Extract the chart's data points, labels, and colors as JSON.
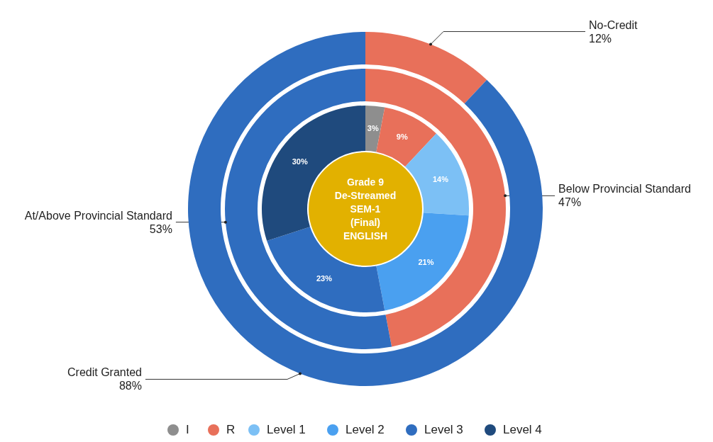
{
  "chart_data": [
    {
      "type": "donut",
      "title": "Grade 9 De-Streamed SEM-1 (Final) ENGLISH",
      "categories": [
        "I",
        "R",
        "Level 1",
        "Level 2",
        "Level 3",
        "Level 4"
      ],
      "values": [
        3,
        9,
        14,
        21,
        23,
        30
      ],
      "colors": [
        "#8e8e8e",
        "#e8705a",
        "#7cc0f5",
        "#4aa0f0",
        "#2f6dbf",
        "#1f4a7d"
      ],
      "value_labels": [
        "3%",
        "9%",
        "14%",
        "21%",
        "23%",
        "30%"
      ],
      "legend": "bottom"
    },
    {
      "type": "donut",
      "categories": [
        "Below Provincial Standard",
        "At/Above Provincial Standard"
      ],
      "values": [
        47,
        53
      ],
      "colors": [
        "#e8705a",
        "#2f6dbf"
      ],
      "value_labels": [
        "47%",
        "53%"
      ]
    },
    {
      "type": "donut",
      "categories": [
        "No-Credit",
        "Credit Granted"
      ],
      "values": [
        12,
        88
      ],
      "colors": [
        "#e8705a",
        "#2f6dbf"
      ],
      "value_labels": [
        "12%",
        "88%"
      ]
    }
  ]
}
